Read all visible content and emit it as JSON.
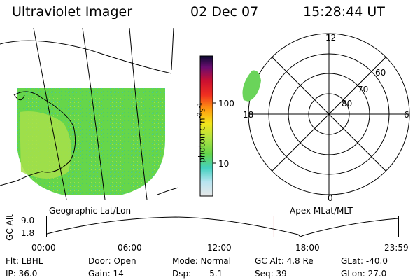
{
  "header": {
    "title": "Ultraviolet Imager",
    "date": "02 Dec 07",
    "time": "15:28:44 UT"
  },
  "colorbar": {
    "unit_label": "photon cm",
    "unit_sup1": "-2",
    "unit_s": "s",
    "unit_sup2": "-1",
    "ticks": [
      "100",
      "10"
    ]
  },
  "geo_map": {
    "label": "Geographic Lat/Lon"
  },
  "polar_plot": {
    "label": "Apex MLat/MLT",
    "mlt_labels": {
      "top": "12",
      "right": "6",
      "bottom": "0",
      "left": "18"
    },
    "mlat_labels": [
      "60",
      "70",
      "80"
    ]
  },
  "altitude_panel": {
    "ylabel": "GC Alt",
    "y_ticks": [
      "9.0",
      "1.8"
    ],
    "x_ticks": [
      "00:00",
      "06:00",
      "12:00",
      "18:00",
      "23:59"
    ],
    "current_time_marker_hour": 15.48,
    "colors": {
      "curve": "#000000",
      "marker": "#cc2222"
    }
  },
  "info": {
    "flt": "Flt: LBHL",
    "ip": "IP: 36.0",
    "door": "Door: Open",
    "gain": "Gain: 14",
    "mode": "Mode: Normal",
    "dsp_label": "Dsp:",
    "dsp_value": "5.1",
    "gcalt": "GC Alt: 4.8 Re",
    "seq": "Seq: 39",
    "glat": "GLat: -40.0",
    "glon": "GLon: 27.0"
  }
}
